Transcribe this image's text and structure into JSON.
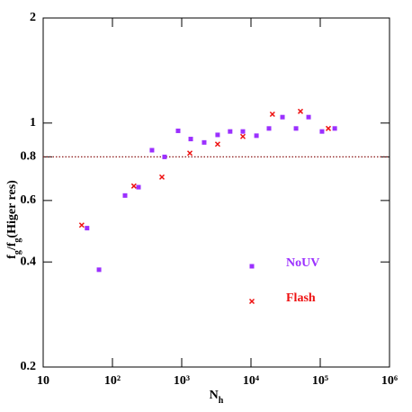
{
  "chart_data": {
    "type": "scatter",
    "xlabel_parts": [
      "N",
      "h"
    ],
    "ylabel_parts": [
      "f",
      "g",
      "/f",
      "g",
      "(Higer res)"
    ],
    "xscale": "log",
    "yscale": "log",
    "xlim": [
      10,
      1000000
    ],
    "ylim": [
      0.2,
      2
    ],
    "xticks": [
      10,
      {
        "value": 100,
        "label": "10²"
      },
      {
        "value": 1000,
        "label": "10³"
      },
      {
        "value": 10000,
        "label": "10⁴"
      },
      {
        "value": 100000,
        "label": "10⁵"
      },
      {
        "value": 1000000,
        "label": "10⁶"
      }
    ],
    "yticks": [
      0.2,
      0.4,
      0.6,
      0.8,
      1,
      2
    ],
    "hline": {
      "value": 0.8,
      "color": "#8b1a1a"
    },
    "series": [
      {
        "name": "NoUV",
        "color": "#9b30ff",
        "marker": "square",
        "x": [
          43,
          64,
          152,
          238,
          372,
          566,
          887,
          1350,
          2110,
          3300,
          5000,
          7640,
          12000,
          18200,
          28500,
          44700,
          67900,
          106000,
          162000
        ],
        "values": [
          0.5,
          0.38,
          0.62,
          0.655,
          0.836,
          0.8,
          0.95,
          0.9,
          0.88,
          0.925,
          0.946,
          0.946,
          0.92,
          0.965,
          1.04,
          0.965,
          1.04,
          0.946,
          0.965
        ]
      },
      {
        "name": "Flash",
        "color": "#ee1111",
        "marker": "cross",
        "x": [
          36,
          204,
          518,
          1310,
          3300,
          7640,
          20400,
          51800,
          131000
        ],
        "values": [
          0.51,
          0.66,
          0.7,
          0.82,
          0.87,
          0.915,
          1.06,
          1.08,
          0.965
        ]
      }
    ]
  }
}
